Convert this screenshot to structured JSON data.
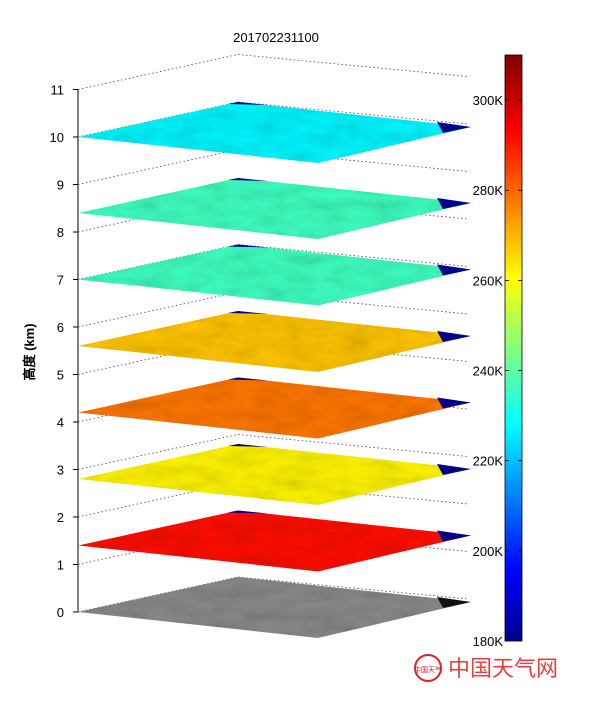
{
  "chart_data": {
    "type": "heatmap",
    "title": "201702231100",
    "ylabel": "高度 (km)",
    "ylim": [
      0,
      11
    ],
    "yticks": [
      0,
      1,
      2,
      3,
      4,
      5,
      6,
      7,
      8,
      9,
      10,
      11
    ],
    "colorbar": {
      "range": [
        180,
        310
      ],
      "tick_values": [
        180,
        200,
        220,
        240,
        260,
        280,
        300
      ],
      "tick_labels": [
        "180K",
        "200K",
        "220K",
        "240K",
        "260K",
        "280K",
        "300K"
      ],
      "colormap": "jet"
    },
    "layers": [
      {
        "height_km": 0.0,
        "kind": "grayscale"
      },
      {
        "height_km": 1.4,
        "mean_K": 292
      },
      {
        "height_km": 2.8,
        "mean_K": 262
      },
      {
        "height_km": 4.2,
        "mean_K": 278
      },
      {
        "height_km": 5.6,
        "mean_K": 268
      },
      {
        "height_km": 7.0,
        "mean_K": 236
      },
      {
        "height_km": 8.4,
        "mean_K": 236
      },
      {
        "height_km": 10.0,
        "mean_K": 227
      }
    ]
  },
  "watermark": {
    "text": "中国天气网",
    "seal_text": "中国天气"
  }
}
